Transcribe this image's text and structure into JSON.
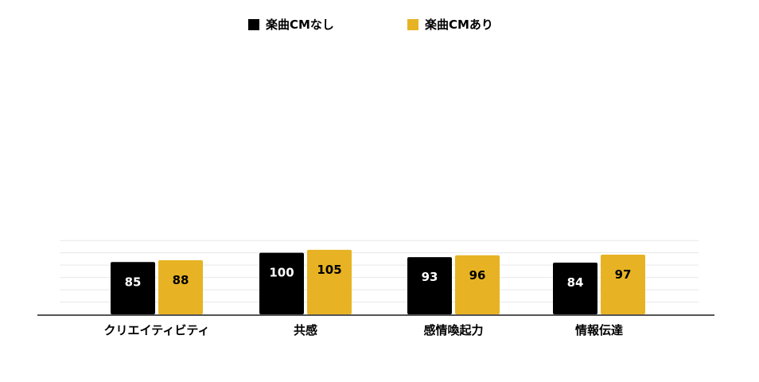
{
  "chart_data": {
    "type": "bar",
    "categories": [
      "クリエイティビティ",
      "共感",
      "感情喚起力",
      "情報伝達"
    ],
    "series": [
      {
        "name": "楽曲CMなし",
        "values": [
          85,
          100,
          93,
          84
        ],
        "color": "#000000",
        "label_color": "#ffffff"
      },
      {
        "name": "楽曲CMあり",
        "values": [
          88,
          105,
          96,
          97
        ],
        "color": "#e7b324",
        "label_color": "#000000"
      }
    ],
    "ylim": [
      0,
      120
    ],
    "grid": true,
    "legend": "top-center",
    "title": "",
    "xlabel": "",
    "ylabel": ""
  }
}
